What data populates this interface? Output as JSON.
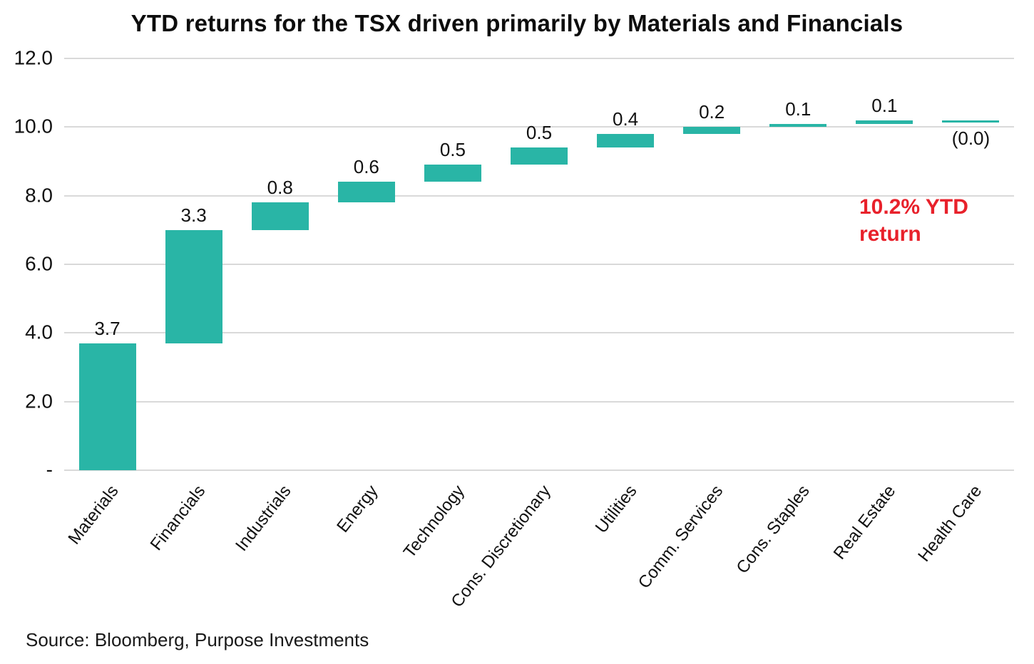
{
  "title": "YTD returns for the TSX driven primarily by Materials and Financials",
  "annotation": {
    "text": "10.2% YTD return",
    "color": "#E8212B"
  },
  "source": "Source: Bloomberg, Purpose Investments",
  "chart_data": {
    "type": "bar",
    "subtype": "waterfall",
    "title": "YTD returns for the TSX driven primarily by Materials and Financials",
    "categories": [
      "Materials",
      "Financials",
      "Industrials",
      "Energy",
      "Technology",
      "Cons. Discretionary",
      "Utilities",
      "Comm. Services",
      "Cons. Staples",
      "Real Estate",
      "Health Care"
    ],
    "values": [
      3.7,
      3.3,
      0.8,
      0.6,
      0.5,
      0.5,
      0.4,
      0.2,
      0.1,
      0.1,
      0.0
    ],
    "value_labels": [
      "3.7",
      "3.3",
      "0.8",
      "0.6",
      "0.5",
      "0.5",
      "0.4",
      "0.2",
      "0.1",
      "0.1",
      "(0.0)"
    ],
    "cumulative": [
      3.7,
      7.0,
      7.8,
      8.4,
      8.9,
      9.4,
      9.8,
      10.0,
      10.1,
      10.2,
      10.2
    ],
    "total": 10.2,
    "total_label": "10.2% YTD return",
    "bar_color": "#29B5A6",
    "annotation_color": "#E8212B",
    "ylim": [
      0,
      12
    ],
    "yticks": [
      {
        "value": 12,
        "label": "12.0"
      },
      {
        "value": 10,
        "label": "10.0"
      },
      {
        "value": 8,
        "label": "8.0"
      },
      {
        "value": 6,
        "label": "6.0"
      },
      {
        "value": 4,
        "label": "4.0"
      },
      {
        "value": 2,
        "label": "2.0"
      },
      {
        "value": 0,
        "label": "-"
      }
    ],
    "grid": true,
    "legend": false,
    "xlabel": "",
    "ylabel": ""
  }
}
